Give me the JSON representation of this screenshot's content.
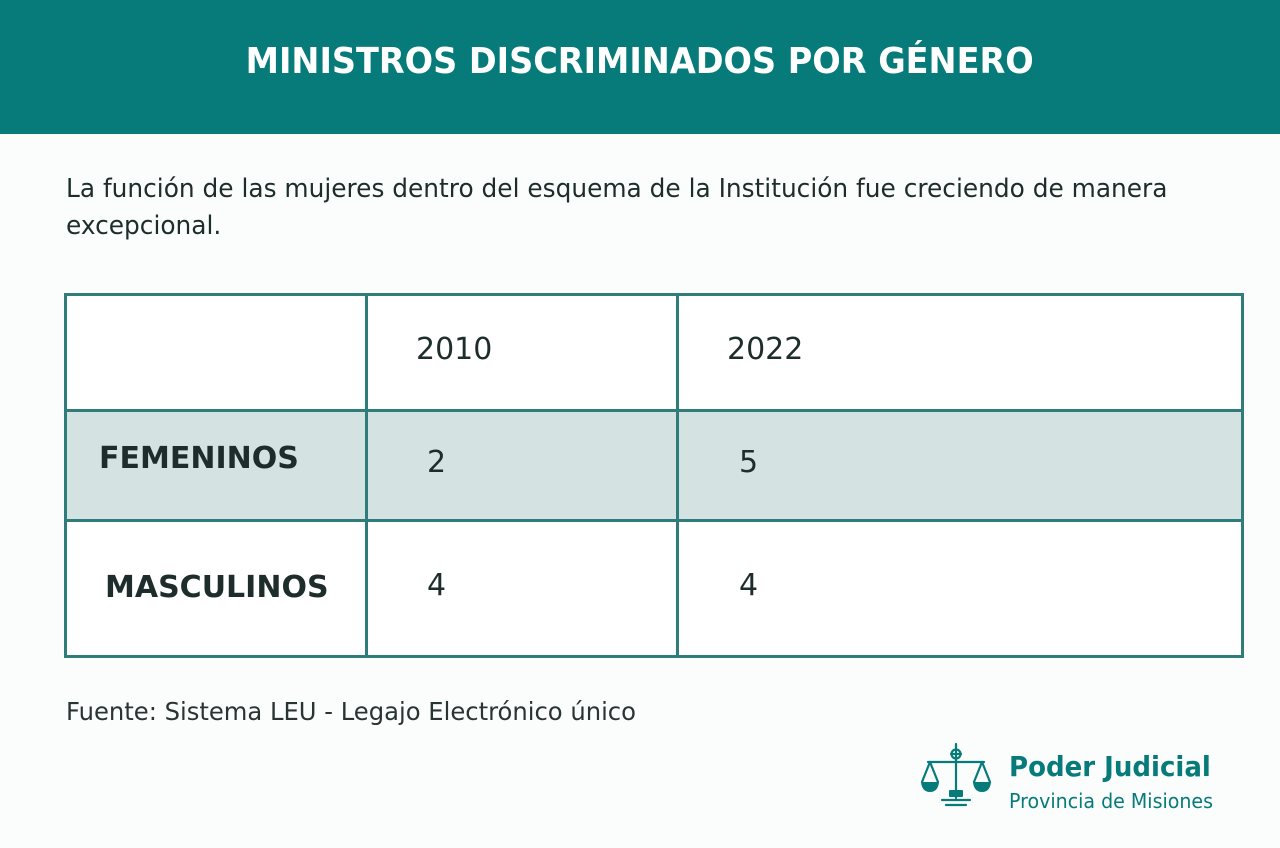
{
  "header": {
    "title": "MINISTROS DISCRIMINADOS POR GÉNERO"
  },
  "intro": {
    "text": "La función de las mujeres dentro del esquema de la Institución fue creciendo de manera excepcional."
  },
  "table": {
    "columns": [
      "",
      "2010",
      "2022"
    ],
    "rows": [
      {
        "label": "FEMENINOS",
        "values": [
          "2",
          "5"
        ]
      },
      {
        "label": "MASCULINOS",
        "values": [
          "4",
          "4"
        ]
      }
    ]
  },
  "source": {
    "text": "Fuente: Sistema LEU - Legajo Electrónico único"
  },
  "logo": {
    "icon": "scales-of-justice-icon",
    "title": "Poder Judicial",
    "subtitle": "Provincia de Misiones"
  },
  "colors": {
    "brand": "#067b7a",
    "table_border": "#2e7d7a",
    "highlight_row": "#d4e2e1"
  }
}
